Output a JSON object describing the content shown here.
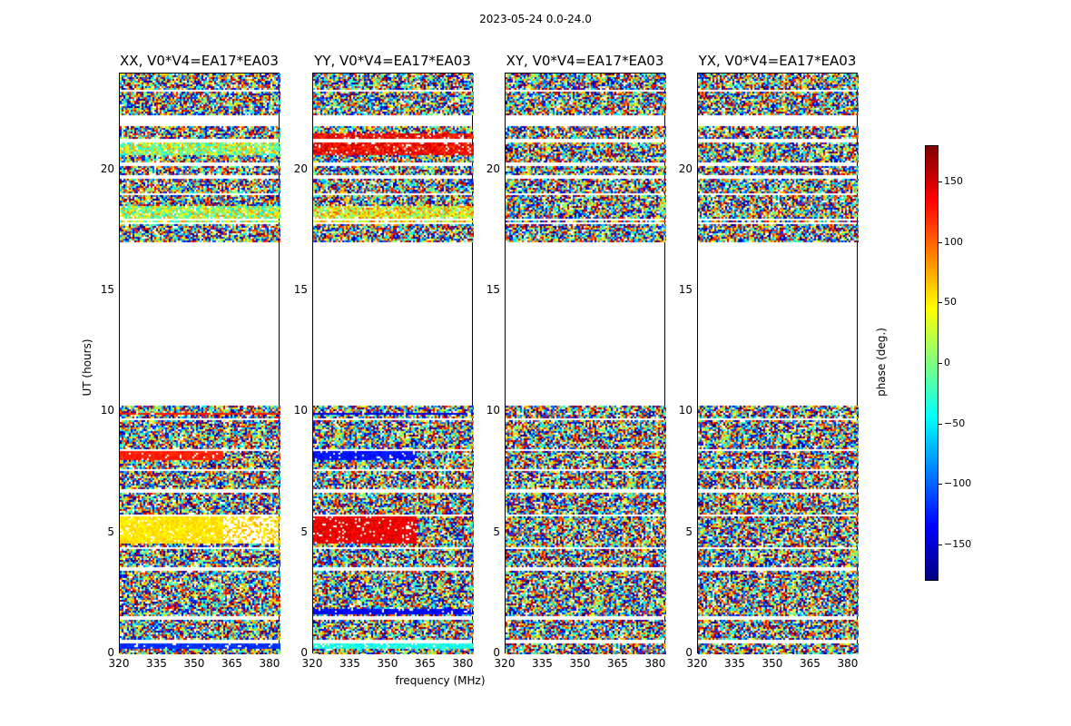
{
  "suptitle": "2023-05-24 0.0-24.0",
  "panels": [
    {
      "title": "XX, V0*V4=EA17*EA03",
      "mode": "xx"
    },
    {
      "title": "YY, V0*V4=EA17*EA03",
      "mode": "yy"
    },
    {
      "title": "XY, V0*V4=EA17*EA03",
      "mode": "xy"
    },
    {
      "title": "YX, V0*V4=EA17*EA03",
      "mode": "yx"
    }
  ],
  "axes": {
    "xlabel": "frequency (MHz)",
    "ylabel": "UT (hours)",
    "xticks": [
      "320",
      "335",
      "350",
      "365",
      "380"
    ],
    "yticks": [
      "0",
      "5",
      "10",
      "15",
      "20"
    ]
  },
  "colorbar": {
    "label": "phase (deg.)",
    "ticks": [
      "150",
      "100",
      "50",
      "0",
      "−50",
      "−100",
      "−150"
    ],
    "tick_values": [
      150,
      100,
      50,
      0,
      -50,
      -100,
      -150
    ],
    "range": [
      -180,
      180
    ]
  },
  "chart_data": {
    "type": "heatmap",
    "title": "2023-05-24 0.0-24.0",
    "xlabel": "frequency (MHz)",
    "ylabel": "UT (hours)",
    "xlim": [
      320,
      384
    ],
    "ylim": [
      0,
      24
    ],
    "zlabel": "phase (deg.)",
    "zlim": [
      -180,
      180
    ],
    "series": [
      {
        "name": "XX, V0*V4=EA17*EA03"
      },
      {
        "name": "YY, V0*V4=EA17*EA03"
      },
      {
        "name": "XY, V0*V4=EA17*EA03"
      },
      {
        "name": "YX, V0*V4=EA17*EA03"
      }
    ],
    "data_gap_hours": [
      10.3,
      17.1
    ]
  }
}
